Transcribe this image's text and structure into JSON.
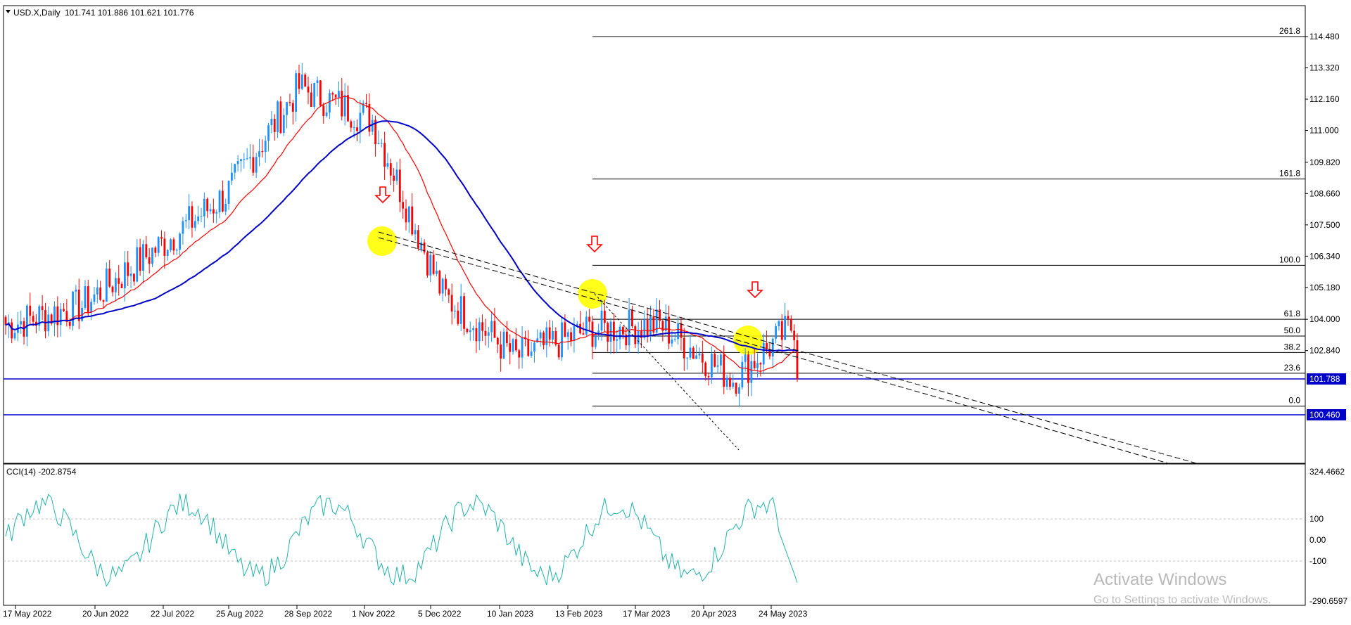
{
  "header": {
    "symbol": "USD.X,Daily",
    "ohlc": "101.741 101.886 101.621 101.776"
  },
  "indicator": {
    "label": "CCI(14) -202.8754",
    "levels": [
      "324.4662",
      "100",
      "0.00",
      "-100",
      "-290.6597"
    ]
  },
  "price_axis": {
    "ticks": [
      "114.480",
      "113.320",
      "112.160",
      "111.000",
      "109.820",
      "108.660",
      "107.500",
      "106.340",
      "105.180",
      "104.000",
      "102.840",
      "101.788",
      "100.460"
    ],
    "current_price": "101.788",
    "support_price": "100.460"
  },
  "fib_levels": [
    "261.8",
    "161.8",
    "100.0",
    "61.8",
    "50.0",
    "38.2",
    "23.6",
    "0.0"
  ],
  "time_axis": [
    "17 May 2022",
    "20 Jun 2022",
    "22 Jul 2022",
    "25 Aug 2022",
    "28 Sep 2022",
    "1 Nov 2022",
    "5 Dec 2022",
    "10 Jan 2023",
    "13 Feb 2023",
    "17 Mar 2023",
    "20 Apr 2023",
    "24 May 2023"
  ],
  "watermark": {
    "title": "Activate Windows",
    "subtitle": "Go to Settings to activate Windows."
  },
  "colors": {
    "bull": "#1e90ff",
    "bear": "#ff0000",
    "ma_fast": "#ff0000",
    "ma_slow": "#0000c8",
    "cci": "#20b2aa",
    "hline": "#0000c8",
    "highlight": "#ffff00",
    "arrow": "#ff0000"
  },
  "chart_data": {
    "type": "candlestick",
    "symbol": "USD.X",
    "timeframe": "Daily",
    "last_close": 101.776,
    "price_range": [
      100.3,
      115.0
    ],
    "closes": [
      {
        "date": "17 May 2022",
        "close": 103.8
      },
      {
        "date": "20 Jun 2022",
        "close": 104.5
      },
      {
        "date": "22 Jul 2022",
        "close": 106.6
      },
      {
        "date": "25 Aug 2022",
        "close": 108.6
      },
      {
        "date": "28 Sep 2022",
        "close": 112.6
      },
      {
        "date": "1 Nov 2022",
        "close": 111.4
      },
      {
        "date": "5 Dec 2022",
        "close": 104.9
      },
      {
        "date": "10 Jan 2023",
        "close": 102.6
      },
      {
        "date": "13 Feb 2023",
        "close": 103.6
      },
      {
        "date": "17 Mar 2023",
        "close": 103.8
      },
      {
        "date": "20 Apr 2023",
        "close": 101.8
      },
      {
        "date": "24 May 2023",
        "close": 103.9
      }
    ],
    "horizontal_lines": [
      101.788,
      100.46
    ],
    "fibonacci": [
      {
        "level": "261.8",
        "price": 114.48
      },
      {
        "level": "161.8",
        "price": 109.2
      },
      {
        "level": "100.0",
        "price": 106.0
      },
      {
        "level": "61.8",
        "price": 104.0
      },
      {
        "level": "50.0",
        "price": 103.38
      },
      {
        "level": "38.2",
        "price": 102.77
      },
      {
        "level": "23.6",
        "price": 102.0
      },
      {
        "level": "0.0",
        "price": 100.78
      }
    ],
    "cci_range": [
      -290.6597,
      324.4662
    ],
    "cci_last": -202.8754
  }
}
